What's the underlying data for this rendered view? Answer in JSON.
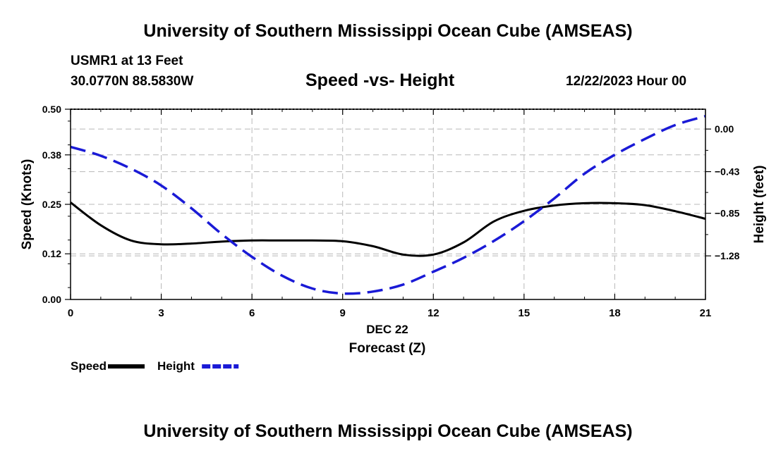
{
  "header": {
    "title": "University of Southern Mississippi Ocean Cube (AMSEAS)",
    "station": "USMR1 at 13 Feet",
    "coordinates": "30.0770N  88.5830W",
    "subtitle": "Speed -vs- Height",
    "datetime": "12/22/2023 Hour 00"
  },
  "footer": {
    "title": "University of Southern Mississippi Ocean Cube (AMSEAS)"
  },
  "chart_data": {
    "type": "line",
    "title": "Speed -vs- Height",
    "x": [
      0,
      1,
      2,
      3,
      4,
      5,
      6,
      7,
      8,
      9,
      10,
      11,
      12,
      13,
      14,
      15,
      16,
      17,
      18,
      19,
      20,
      21
    ],
    "xlim": [
      0,
      21
    ],
    "xticks": [
      0,
      3,
      6,
      9,
      12,
      15,
      18,
      21
    ],
    "xlabel_date": "DEC 22",
    "xlabel": "Forecast (Z)",
    "ylabel": "Speed (Knots)",
    "ylim": [
      0,
      0.5
    ],
    "yticks": [
      0.0,
      0.12,
      0.25,
      0.38,
      0.5
    ],
    "ytick_labels": [
      "0.00",
      "0.12",
      "0.25",
      "0.38",
      "0.50"
    ],
    "y2label": "Height (feet)",
    "y2lim": [
      -1.72,
      0.2
    ],
    "y2ticks": [
      0.0,
      -0.43,
      -0.85,
      -1.28
    ],
    "y2tick_labels": [
      "0.00",
      "-0.43",
      "-0.85",
      "-1.28"
    ],
    "grid": true,
    "series": [
      {
        "name": "Speed",
        "axis": "left",
        "color": "#000000",
        "style": "solid",
        "values": [
          0.255,
          0.195,
          0.155,
          0.145,
          0.147,
          0.152,
          0.155,
          0.155,
          0.155,
          0.153,
          0.14,
          0.118,
          0.118,
          0.15,
          0.205,
          0.233,
          0.247,
          0.253,
          0.253,
          0.248,
          0.232,
          0.212
        ]
      },
      {
        "name": "Height",
        "axis": "right",
        "color": "#1a1ad6",
        "style": "dashed",
        "values": [
          -0.18,
          -0.27,
          -0.4,
          -0.57,
          -0.8,
          -1.06,
          -1.29,
          -1.48,
          -1.61,
          -1.66,
          -1.64,
          -1.57,
          -1.44,
          -1.3,
          -1.13,
          -0.93,
          -0.7,
          -0.45,
          -0.26,
          -0.1,
          0.04,
          0.13
        ]
      }
    ],
    "legend": [
      {
        "label": "Speed",
        "color": "#000000",
        "style": "solid"
      },
      {
        "label": "Height",
        "color": "#1a1ad6",
        "style": "dashed"
      }
    ]
  }
}
